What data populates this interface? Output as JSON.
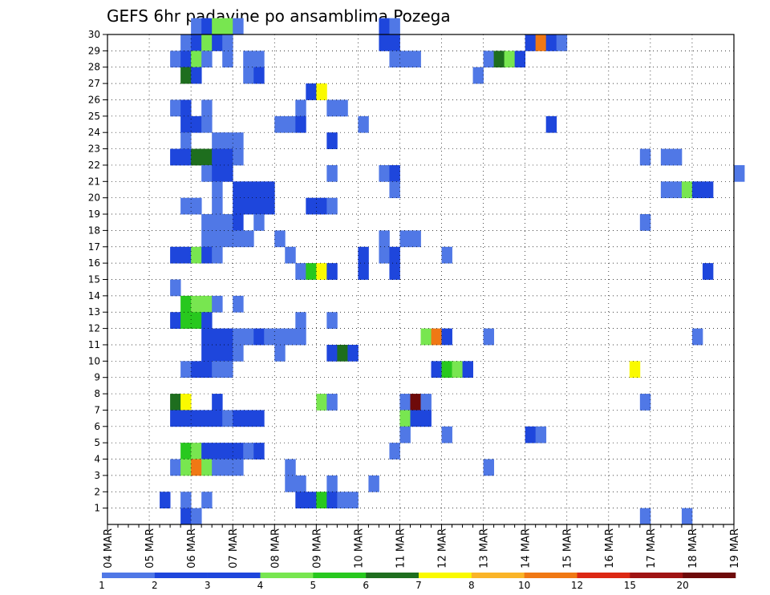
{
  "chart_data": {
    "type": "heatmap",
    "title": "GEFS 6hr padavine po ansamblima Pozega",
    "xlabel": "",
    "ylabel": "",
    "x_ticks": [
      "04 MAR",
      "05 MAR",
      "06 MAR",
      "07 MAR",
      "08 MAR",
      "09 MAR",
      "10 MAR",
      "11 MAR",
      "12 MAR",
      "13 MAR",
      "14 MAR",
      "15 MAR",
      "16 MAR",
      "17 MAR",
      "18 MAR",
      "19 MAR"
    ],
    "y_ticks": [
      1,
      2,
      3,
      4,
      5,
      6,
      7,
      8,
      9,
      10,
      11,
      12,
      13,
      14,
      15,
      16,
      17,
      18,
      19,
      20,
      21,
      22,
      23,
      24,
      25,
      26,
      27,
      28,
      29,
      30
    ],
    "ylim": [
      0,
      30
    ],
    "x_step": "6hr",
    "grid": true,
    "legend": {
      "position": "bottom",
      "labels": [
        "1",
        "2",
        "3",
        "4",
        "5",
        "6",
        "7",
        "8",
        "10",
        "12",
        "15",
        "20"
      ],
      "colors": [
        "#b4c8f5",
        "#5078e6",
        "#1e46dc",
        "#1e46dc",
        "#78e650",
        "#28c81e",
        "#1e6e1e",
        "#fafa00",
        "#fab428",
        "#f07814",
        "#dc2814",
        "#a01414",
        "#6e0a0a"
      ]
    },
    "cells": [
      [
        30,
        8,
        1
      ],
      [
        30,
        9,
        2
      ],
      [
        30,
        10,
        4
      ],
      [
        30,
        11,
        4
      ],
      [
        30,
        12,
        1
      ],
      [
        30,
        26,
        2
      ],
      [
        30,
        27,
        1
      ],
      [
        29,
        7,
        1
      ],
      [
        29,
        8,
        2
      ],
      [
        29,
        9,
        4
      ],
      [
        29,
        10,
        3
      ],
      [
        29,
        11,
        1
      ],
      [
        29,
        26,
        3
      ],
      [
        29,
        27,
        3
      ],
      [
        29,
        40,
        2
      ],
      [
        29,
        41,
        9
      ],
      [
        29,
        42,
        2
      ],
      [
        29,
        43,
        1
      ],
      [
        28,
        6,
        1
      ],
      [
        28,
        7,
        3
      ],
      [
        28,
        8,
        4
      ],
      [
        28,
        9,
        1
      ],
      [
        28,
        11,
        1
      ],
      [
        28,
        13,
        1
      ],
      [
        28,
        14,
        1
      ],
      [
        28,
        27,
        1
      ],
      [
        28,
        28,
        1
      ],
      [
        28,
        29,
        1
      ],
      [
        28,
        36,
        1
      ],
      [
        28,
        37,
        6
      ],
      [
        28,
        38,
        4
      ],
      [
        28,
        39,
        3
      ],
      [
        27,
        7,
        6
      ],
      [
        27,
        8,
        3
      ],
      [
        27,
        13,
        1
      ],
      [
        27,
        14,
        2
      ],
      [
        27,
        35,
        1
      ],
      [
        26,
        19,
        3
      ],
      [
        26,
        20,
        7
      ],
      [
        25,
        6,
        1
      ],
      [
        25,
        7,
        2
      ],
      [
        25,
        9,
        1
      ],
      [
        25,
        18,
        1
      ],
      [
        25,
        21,
        1
      ],
      [
        25,
        22,
        1
      ],
      [
        24,
        7,
        2
      ],
      [
        24,
        8,
        2
      ],
      [
        24,
        9,
        1
      ],
      [
        24,
        16,
        1
      ],
      [
        24,
        17,
        1
      ],
      [
        24,
        18,
        2
      ],
      [
        24,
        24,
        1
      ],
      [
        24,
        42,
        3
      ],
      [
        23,
        7,
        1
      ],
      [
        23,
        10,
        1
      ],
      [
        23,
        11,
        1
      ],
      [
        23,
        12,
        1
      ],
      [
        23,
        21,
        2
      ],
      [
        22,
        6,
        3
      ],
      [
        22,
        7,
        3
      ],
      [
        22,
        8,
        6
      ],
      [
        22,
        9,
        6
      ],
      [
        22,
        10,
        3
      ],
      [
        22,
        11,
        2
      ],
      [
        22,
        12,
        1
      ],
      [
        22,
        51,
        1
      ],
      [
        22,
        53,
        1
      ],
      [
        22,
        54,
        1
      ],
      [
        21,
        9,
        1
      ],
      [
        21,
        10,
        3
      ],
      [
        21,
        11,
        2
      ],
      [
        21,
        21,
        1
      ],
      [
        21,
        26,
        1
      ],
      [
        21,
        27,
        2
      ],
      [
        21,
        60,
        1
      ],
      [
        20,
        10,
        1
      ],
      [
        20,
        12,
        2
      ],
      [
        20,
        13,
        2
      ],
      [
        20,
        14,
        2
      ],
      [
        20,
        15,
        2
      ],
      [
        20,
        27,
        1
      ],
      [
        20,
        53,
        1
      ],
      [
        20,
        54,
        1
      ],
      [
        20,
        55,
        4
      ],
      [
        20,
        56,
        2
      ],
      [
        20,
        57,
        2
      ],
      [
        19,
        7,
        1
      ],
      [
        19,
        8,
        1
      ],
      [
        19,
        10,
        1
      ],
      [
        19,
        12,
        2
      ],
      [
        19,
        13,
        3
      ],
      [
        19,
        14,
        3
      ],
      [
        19,
        15,
        2
      ],
      [
        19,
        19,
        2
      ],
      [
        19,
        20,
        3
      ],
      [
        19,
        21,
        1
      ],
      [
        18,
        9,
        1
      ],
      [
        18,
        10,
        1
      ],
      [
        18,
        11,
        1
      ],
      [
        18,
        12,
        2
      ],
      [
        18,
        14,
        1
      ],
      [
        18,
        51,
        1
      ],
      [
        17,
        9,
        1
      ],
      [
        17,
        10,
        1
      ],
      [
        17,
        11,
        1
      ],
      [
        17,
        12,
        1
      ],
      [
        17,
        13,
        1
      ],
      [
        17,
        16,
        1
      ],
      [
        17,
        26,
        1
      ],
      [
        17,
        28,
        1
      ],
      [
        17,
        29,
        1
      ],
      [
        16,
        6,
        3
      ],
      [
        16,
        7,
        2
      ],
      [
        16,
        8,
        4
      ],
      [
        16,
        9,
        3
      ],
      [
        16,
        10,
        1
      ],
      [
        16,
        17,
        1
      ],
      [
        16,
        24,
        2
      ],
      [
        16,
        26,
        1
      ],
      [
        16,
        27,
        2
      ],
      [
        16,
        32,
        1
      ],
      [
        15,
        18,
        1
      ],
      [
        15,
        19,
        5
      ],
      [
        15,
        20,
        7
      ],
      [
        15,
        21,
        2
      ],
      [
        15,
        24,
        3
      ],
      [
        15,
        27,
        2
      ],
      [
        15,
        57,
        3
      ],
      [
        14,
        6,
        1
      ],
      [
        13,
        7,
        5
      ],
      [
        13,
        8,
        4
      ],
      [
        13,
        9,
        4
      ],
      [
        13,
        10,
        1
      ],
      [
        13,
        12,
        1
      ],
      [
        12,
        6,
        2
      ],
      [
        12,
        7,
        5
      ],
      [
        12,
        8,
        5
      ],
      [
        12,
        9,
        3
      ],
      [
        12,
        18,
        1
      ],
      [
        12,
        21,
        1
      ],
      [
        11,
        9,
        3
      ],
      [
        11,
        10,
        3
      ],
      [
        11,
        11,
        2
      ],
      [
        11,
        12,
        1
      ],
      [
        11,
        13,
        1
      ],
      [
        11,
        14,
        2
      ],
      [
        11,
        15,
        1
      ],
      [
        11,
        16,
        1
      ],
      [
        11,
        17,
        1
      ],
      [
        11,
        18,
        1
      ],
      [
        11,
        30,
        4
      ],
      [
        11,
        31,
        9
      ],
      [
        11,
        32,
        2
      ],
      [
        11,
        36,
        1
      ],
      [
        11,
        56,
        1
      ],
      [
        10,
        9,
        3
      ],
      [
        10,
        10,
        2
      ],
      [
        10,
        11,
        3
      ],
      [
        10,
        12,
        1
      ],
      [
        10,
        16,
        1
      ],
      [
        10,
        21,
        2
      ],
      [
        10,
        22,
        6
      ],
      [
        10,
        23,
        2
      ],
      [
        9,
        7,
        1
      ],
      [
        9,
        8,
        3
      ],
      [
        9,
        9,
        2
      ],
      [
        9,
        10,
        1
      ],
      [
        9,
        11,
        1
      ],
      [
        9,
        31,
        2
      ],
      [
        9,
        32,
        5
      ],
      [
        9,
        33,
        4
      ],
      [
        9,
        34,
        3
      ],
      [
        9,
        50,
        7
      ],
      [
        7,
        6,
        6
      ],
      [
        7,
        7,
        7
      ],
      [
        7,
        10,
        2
      ],
      [
        7,
        20,
        4
      ],
      [
        7,
        21,
        1
      ],
      [
        7,
        28,
        1
      ],
      [
        7,
        29,
        12
      ],
      [
        7,
        30,
        1
      ],
      [
        7,
        51,
        1
      ],
      [
        6,
        6,
        2
      ],
      [
        6,
        7,
        2
      ],
      [
        6,
        8,
        2
      ],
      [
        6,
        9,
        3
      ],
      [
        6,
        10,
        2
      ],
      [
        6,
        11,
        1
      ],
      [
        6,
        12,
        2
      ],
      [
        6,
        13,
        2
      ],
      [
        6,
        14,
        2
      ],
      [
        6,
        28,
        4
      ],
      [
        6,
        29,
        3
      ],
      [
        6,
        30,
        2
      ],
      [
        5,
        28,
        1
      ],
      [
        5,
        32,
        1
      ],
      [
        5,
        40,
        2
      ],
      [
        5,
        41,
        1
      ],
      [
        4,
        7,
        5
      ],
      [
        4,
        8,
        4
      ],
      [
        4,
        9,
        3
      ],
      [
        4,
        10,
        2
      ],
      [
        4,
        11,
        3
      ],
      [
        4,
        12,
        2
      ],
      [
        4,
        13,
        1
      ],
      [
        4,
        14,
        3
      ],
      [
        4,
        27,
        1
      ],
      [
        3,
        6,
        1
      ],
      [
        3,
        7,
        4
      ],
      [
        3,
        8,
        9
      ],
      [
        3,
        9,
        4
      ],
      [
        3,
        10,
        1
      ],
      [
        3,
        11,
        1
      ],
      [
        3,
        12,
        1
      ],
      [
        3,
        17,
        1
      ],
      [
        3,
        36,
        1
      ],
      [
        2,
        17,
        1
      ],
      [
        2,
        18,
        1
      ],
      [
        2,
        21,
        1
      ],
      [
        2,
        25,
        1
      ],
      [
        1,
        5,
        2
      ],
      [
        1,
        7,
        1
      ],
      [
        1,
        9,
        1
      ],
      [
        1,
        18,
        3
      ],
      [
        1,
        19,
        2
      ],
      [
        1,
        20,
        5
      ],
      [
        1,
        21,
        2
      ],
      [
        1,
        22,
        1
      ],
      [
        1,
        23,
        1
      ],
      [
        0,
        7,
        3
      ],
      [
        0,
        8,
        1
      ],
      [
        0,
        51,
        1
      ],
      [
        0,
        55,
        1
      ]
    ]
  }
}
